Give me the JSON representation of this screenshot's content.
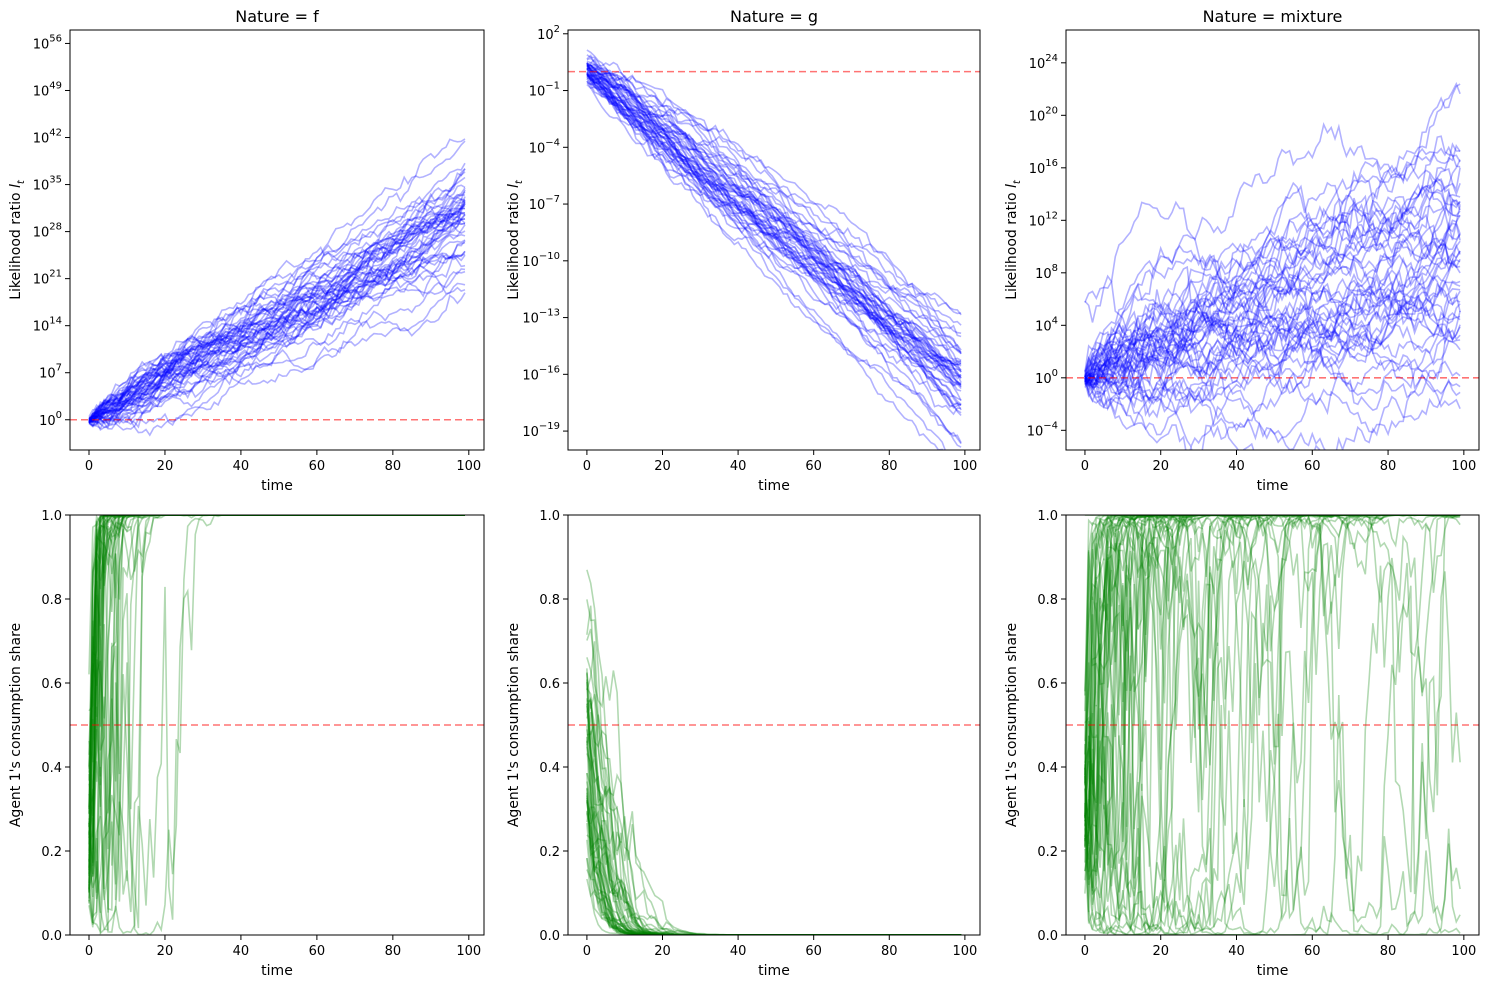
{
  "chart_data": [
    {
      "type": "line",
      "title": "Nature = f",
      "xlabel": "time",
      "ylabel": "Likelihood ratio ",
      "ylabel_math": "l",
      "ylabel_math_sub": "t",
      "yscale": "log",
      "xlim": [
        -5,
        104
      ],
      "ylim_log10": [
        -4.5,
        58
      ],
      "xticks": [
        "0",
        "20",
        "40",
        "60",
        "80",
        "100"
      ],
      "yticks_exponents": [
        "0",
        "7",
        "14",
        "21",
        "28",
        "35",
        "42",
        "49",
        "56"
      ],
      "ytick_base": "10",
      "hline": 1,
      "series_color": "#0000ff",
      "hline_color": "#ff0000",
      "n_series": 50,
      "drift_log10_per_step": 0.3,
      "step_sd_log10": 0.55
    },
    {
      "type": "line",
      "title": "Nature = g",
      "xlabel": "time",
      "ylabel": "Likelihood ratio ",
      "ylabel_math": "l",
      "ylabel_math_sub": "t",
      "yscale": "log",
      "xlim": [
        -5,
        104
      ],
      "ylim_log10": [
        -20,
        2.2
      ],
      "xticks": [
        "0",
        "20",
        "40",
        "60",
        "80",
        "100"
      ],
      "yticks_exponents": [
        "2",
        "-1",
        "-4",
        "-7",
        "-10",
        "-13",
        "-16",
        "-19"
      ],
      "ytick_base": "10",
      "hline": 1,
      "series_color": "#0000ff",
      "hline_color": "#ff0000",
      "n_series": 50,
      "drift_log10_per_step": -0.165,
      "step_sd_log10": 0.16
    },
    {
      "type": "line",
      "title": "Nature = mixture",
      "xlabel": "time",
      "ylabel": "Likelihood ratio ",
      "ylabel_math": "l",
      "ylabel_math_sub": "t",
      "yscale": "log",
      "xlim": [
        -5,
        104
      ],
      "ylim_log10": [
        -5.5,
        26.5
      ],
      "xticks": [
        "0",
        "20",
        "40",
        "60",
        "80",
        "100"
      ],
      "yticks_exponents": [
        "-4",
        "0",
        "4",
        "8",
        "12",
        "16",
        "20",
        "24"
      ],
      "ytick_base": "10",
      "hline": 1,
      "series_color": "#0000ff",
      "hline_color": "#ff0000",
      "n_series": 50,
      "drift_log10_per_step": 0.09,
      "step_sd_log10": 0.55
    },
    {
      "type": "line",
      "title": "",
      "xlabel": "time",
      "ylabel": "Agent 1's consumption share",
      "yscale": "linear",
      "xlim": [
        -5,
        104
      ],
      "ylim": [
        0,
        1
      ],
      "xticks": [
        "0",
        "20",
        "40",
        "60",
        "80",
        "100"
      ],
      "yticks": [
        "0.0",
        "0.2",
        "0.4",
        "0.6",
        "0.8",
        "1.0"
      ],
      "hline": 0.5,
      "series_color": "#008000",
      "hline_color": "#ff0000",
      "n_series": 50,
      "derived_from": 0
    },
    {
      "type": "line",
      "title": "",
      "xlabel": "time",
      "ylabel": "Agent 1's consumption share",
      "yscale": "linear",
      "xlim": [
        -5,
        104
      ],
      "ylim": [
        0,
        1
      ],
      "xticks": [
        "0",
        "20",
        "40",
        "60",
        "80",
        "100"
      ],
      "yticks": [
        "0.0",
        "0.2",
        "0.4",
        "0.6",
        "0.8",
        "1.0"
      ],
      "hline": 0.5,
      "series_color": "#008000",
      "hline_color": "#ff0000",
      "n_series": 50,
      "derived_from": 1
    },
    {
      "type": "line",
      "title": "",
      "xlabel": "time",
      "ylabel": "Agent 1's consumption share",
      "yscale": "linear",
      "xlim": [
        -5,
        104
      ],
      "ylim": [
        0,
        1
      ],
      "xticks": [
        "0",
        "20",
        "40",
        "60",
        "80",
        "100"
      ],
      "yticks": [
        "0.0",
        "0.2",
        "0.4",
        "0.6",
        "0.8",
        "1.0"
      ],
      "hline": 0.5,
      "series_color": "#008000",
      "hline_color": "#ff0000",
      "n_series": 50,
      "derived_from": 2
    }
  ]
}
